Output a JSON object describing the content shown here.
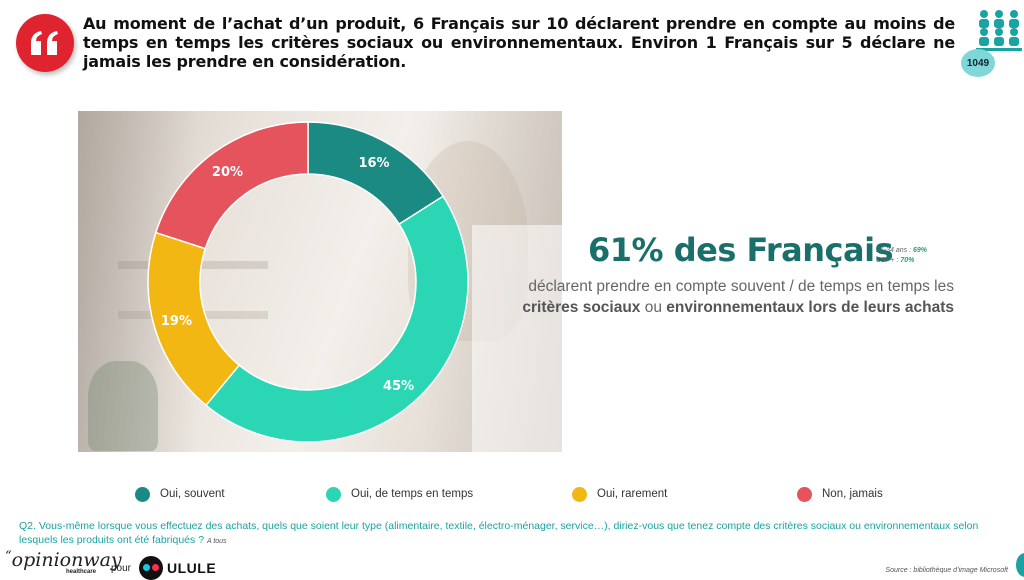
{
  "header": {
    "headline": "Au moment de l’achat d’un produit, 6 Français sur 10 déclarent prendre en compte au moins de temps en temps les critères sociaux ou environnementaux. Environ 1 Français sur 5 déclare ne jamais les prendre en considération.",
    "sample_size": "1049",
    "quote_icon": "quote-icon",
    "sample_icon": "people-group-icon"
  },
  "chart_data": {
    "type": "pie",
    "donut": true,
    "categories": [
      "Oui, souvent",
      "Oui, de temps en temps",
      "Oui, rarement",
      "Non, jamais"
    ],
    "values": [
      16,
      45,
      19,
      20
    ],
    "labels": [
      "16%",
      "45%",
      "19%",
      "20%"
    ],
    "colors": [
      "#1a8a83",
      "#2ad6b4",
      "#f2b713",
      "#e5535c"
    ],
    "legend_position": "bottom"
  },
  "highlight": {
    "stat": "61% des Français",
    "line1": "déclarent prendre en compte souvent  / de temps en temps les",
    "bold1": "critères sociaux",
    "mid": " ou ",
    "bold2": "environnementaux lors de leurs achats",
    "sub1_label": "25-34 ans : ",
    "sub1_value": "69%",
    "sub2_label": "CSP+ : ",
    "sub2_value": "70%"
  },
  "question": {
    "text": "Q2. Vous-même lorsque vous effectuez des achats, quels que soient leur type (alimentaire, textile, électro-ménager, service…), diriez-vous que tenez compte des critères sociaux ou environnementaux selon lesquels les produits ont été fabriqués ?",
    "base": "A tous"
  },
  "footer": {
    "brand": "opinionway",
    "brand_sub": "healthcare",
    "pour": "pour",
    "partner": "ULULE",
    "source": "Source : bibliothèque d’image Microsoft"
  }
}
